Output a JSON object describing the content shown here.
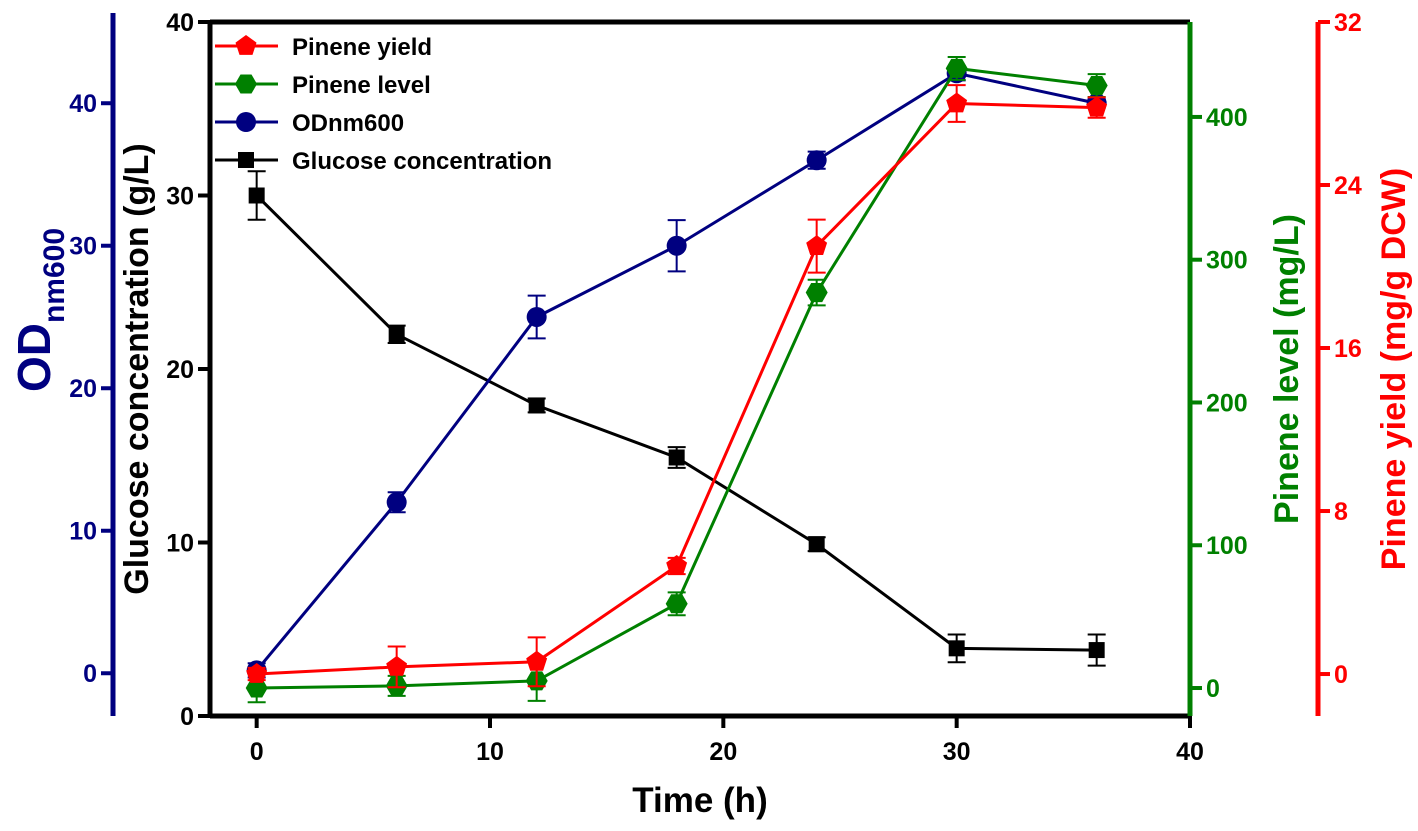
{
  "chart_data": {
    "type": "line",
    "xlabel": "Time (h)",
    "x": [
      0,
      6,
      12,
      18,
      24,
      30,
      36
    ],
    "xlim": [
      -2,
      40
    ],
    "xticks": [
      0,
      10,
      20,
      30,
      40
    ],
    "grid": false,
    "legend_placement": "top-left",
    "axes": {
      "glucose": {
        "label": "Glucose concentration (g/L)",
        "ylim": [
          0,
          40
        ],
        "ticks": [
          0,
          10,
          20,
          30,
          40
        ],
        "color": "#000000",
        "side": "left-inner"
      },
      "od": {
        "label_main": "OD",
        "label_sub": "nm600",
        "ylim": [
          -3,
          45.7
        ],
        "ticks": [
          0,
          10,
          20,
          30,
          40
        ],
        "color": "#000080",
        "side": "left-outer"
      },
      "level": {
        "label": "Pinene level (mg/L)",
        "ylim": [
          -19.6,
          466.5
        ],
        "ticks": [
          0,
          100,
          200,
          300,
          400
        ],
        "color": "#008000",
        "side": "right-inner"
      },
      "yield": {
        "label": "Pinene yield (mg/g DCW)",
        "ylim": [
          -2.06,
          32
        ],
        "ticks": [
          0,
          8,
          16,
          24,
          32
        ],
        "color": "#ff0000",
        "side": "right-outer"
      }
    },
    "series": [
      {
        "name": "Pinene yield",
        "axis": "yield",
        "marker": "pentagon",
        "color": "#ff0000",
        "values": [
          0.0,
          0.35,
          0.6,
          5.3,
          21.0,
          28.0,
          27.8
        ],
        "errors": [
          0.3,
          1.0,
          1.2,
          0.4,
          1.3,
          0.9,
          0.5
        ]
      },
      {
        "name": "Pinene level",
        "axis": "level",
        "marker": "hexagon",
        "color": "#008000",
        "values": [
          0,
          1.5,
          5,
          59,
          277,
          434,
          422
        ],
        "errors": [
          10,
          7,
          14,
          8,
          9,
          8,
          8
        ]
      },
      {
        "name": "ODnm600",
        "axis": "od",
        "marker": "circle",
        "color": "#000080",
        "values": [
          0.2,
          12.0,
          25.0,
          30.0,
          36.0,
          42.1,
          40.0
        ],
        "errors": [
          0.5,
          0.7,
          1.5,
          1.8,
          0.6,
          0.5,
          0.3
        ]
      },
      {
        "name": "Glucose concentration",
        "axis": "glucose",
        "marker": "square",
        "color": "#000000",
        "values": [
          30.0,
          22.0,
          17.9,
          14.9,
          9.9,
          3.9,
          3.8
        ],
        "errors": [
          1.4,
          0.5,
          0.4,
          0.6,
          0.4,
          0.8,
          0.9
        ]
      }
    ]
  }
}
